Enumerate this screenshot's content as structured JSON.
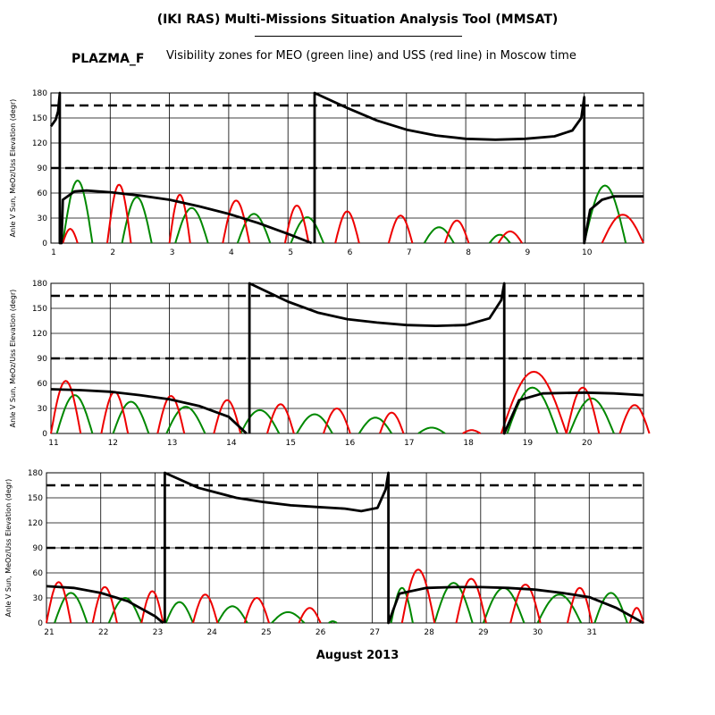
{
  "header": {
    "title": "(IKI RAS) Multi-Missions Situation Analysis Tool (MMSAT)",
    "satellite": "PLAZMA_F",
    "subtitle": "Visibility zones for MEO (green line) and USS (red line) in Moscow time"
  },
  "footer": {
    "month": "August 2013"
  },
  "chart_data": [
    {
      "type": "line",
      "ylabel": "Anle V Sun, MeOz/Uss Elevation (degr)",
      "xlim": [
        1,
        11
      ],
      "ylim": [
        0,
        180
      ],
      "x_ticks": [
        "1",
        "2",
        "3",
        "4",
        "5",
        "6",
        "7",
        "8",
        "9",
        "10"
      ],
      "y_ticks": [
        0,
        30,
        60,
        90,
        120,
        150,
        180
      ],
      "dashed_levels": [
        90,
        165
      ],
      "colors": {
        "black": "#000000",
        "green": "#008800",
        "red": "#ee0000"
      },
      "series": [
        {
          "color": "black",
          "points": [
            [
              1,
              140
            ],
            [
              1.08,
              148
            ],
            [
              1.12,
              158
            ],
            [
              1.15,
              180
            ],
            [
              1.15,
              0
            ],
            [
              1.18,
              0
            ],
            [
              1.2,
              52
            ],
            [
              1.4,
              62
            ],
            [
              1.6,
              63
            ],
            [
              2,
              61
            ],
            [
              2.5,
              57
            ],
            [
              3,
              52
            ],
            [
              3.5,
              44
            ],
            [
              4,
              35
            ],
            [
              4.5,
              24
            ],
            [
              5,
              11
            ],
            [
              5.4,
              0
            ]
          ]
        },
        {
          "color": "black",
          "points": [
            [
              5.45,
              0
            ],
            [
              5.45,
              180
            ],
            [
              6,
              162
            ],
            [
              6.5,
              147
            ],
            [
              7,
              136
            ],
            [
              7.5,
              129
            ],
            [
              8,
              125
            ],
            [
              8.5,
              124
            ],
            [
              9,
              125
            ],
            [
              9.5,
              128
            ],
            [
              9.8,
              135
            ],
            [
              9.95,
              150
            ],
            [
              10,
              175
            ],
            [
              10,
              0
            ],
            [
              10.1,
              40
            ],
            [
              10.3,
              52
            ],
            [
              10.5,
              56
            ],
            [
              11,
              56
            ]
          ]
        }
      ],
      "red_arcs": [
        [
          1.2,
          1.45,
          17
        ],
        [
          1.95,
          2.35,
          70
        ],
        [
          3.0,
          3.35,
          58
        ],
        [
          3.9,
          4.35,
          51
        ],
        [
          4.95,
          5.35,
          45
        ],
        [
          5.8,
          6.2,
          38
        ],
        [
          6.7,
          7.1,
          33
        ],
        [
          7.65,
          8.05,
          27
        ],
        [
          8.55,
          8.95,
          14
        ],
        [
          10.3,
          11,
          34
        ]
      ],
      "green_arcs": [
        [
          1.2,
          1.7,
          75
        ],
        [
          2.2,
          2.7,
          55
        ],
        [
          3.1,
          3.65,
          42
        ],
        [
          4.15,
          4.7,
          35
        ],
        [
          5.05,
          5.6,
          31
        ],
        [
          7.3,
          7.8,
          19
        ],
        [
          8.4,
          8.75,
          10
        ],
        [
          10,
          10.7,
          69
        ]
      ]
    },
    {
      "type": "line",
      "ylabel": "Anle V Sun, MeOz/Uss Elevation (degr)",
      "xlim": [
        11,
        21
      ],
      "ylim": [
        0,
        180
      ],
      "x_ticks": [
        "11",
        "12",
        "13",
        "14",
        "15",
        "16",
        "17",
        "18",
        "19",
        "20"
      ],
      "y_ticks": [
        0,
        30,
        60,
        90,
        120,
        150,
        180
      ],
      "dashed_levels": [
        90,
        165
      ],
      "colors": {
        "black": "#000000",
        "green": "#008800",
        "red": "#ee0000"
      },
      "series": [
        {
          "color": "black",
          "points": [
            [
              11,
              53
            ],
            [
              11.5,
              52
            ],
            [
              12,
              50
            ],
            [
              12.5,
              46
            ],
            [
              13,
              41
            ],
            [
              13.5,
              33
            ],
            [
              14,
              20
            ],
            [
              14.3,
              0
            ]
          ]
        },
        {
          "color": "black",
          "points": [
            [
              14.35,
              0
            ],
            [
              14.35,
              180
            ],
            [
              15,
              158
            ],
            [
              15.5,
              145
            ],
            [
              16,
              137
            ],
            [
              16.5,
              133
            ],
            [
              17,
              130
            ],
            [
              17.5,
              129
            ],
            [
              18,
              130
            ],
            [
              18.4,
              138
            ],
            [
              18.6,
              160
            ],
            [
              18.65,
              180
            ],
            [
              18.65,
              0
            ],
            [
              18.9,
              40
            ],
            [
              19.3,
              48
            ],
            [
              20,
              49
            ],
            [
              20.5,
              48
            ],
            [
              21,
              46
            ]
          ]
        }
      ],
      "red_arcs": [
        [
          11,
          11.5,
          63
        ],
        [
          11.85,
          12.3,
          50
        ],
        [
          12.8,
          13.25,
          45
        ],
        [
          13.75,
          14.2,
          40
        ],
        [
          14.65,
          15.1,
          35
        ],
        [
          15.6,
          16.05,
          30
        ],
        [
          16.55,
          16.95,
          25
        ],
        [
          17.95,
          18.25,
          4
        ],
        [
          18.6,
          19.7,
          74
        ],
        [
          19.7,
          20.25,
          55
        ],
        [
          20.6,
          21.1,
          34
        ]
      ],
      "green_arcs": [
        [
          11.1,
          11.7,
          46
        ],
        [
          12.05,
          12.65,
          38
        ],
        [
          12.95,
          13.6,
          32
        ],
        [
          14.2,
          14.85,
          28
        ],
        [
          15.15,
          15.75,
          23
        ],
        [
          16.2,
          16.75,
          19
        ],
        [
          17.2,
          17.65,
          7
        ],
        [
          18.7,
          19.55,
          55
        ],
        [
          19.75,
          20.5,
          42
        ]
      ]
    },
    {
      "type": "line",
      "ylabel": "Anle V Sun, MeOz/Uss Elevation (degr)",
      "xlim": [
        21,
        32
      ],
      "ylim": [
        0,
        180
      ],
      "x_ticks": [
        "21",
        "22",
        "23",
        "24",
        "25",
        "26",
        "27",
        "28",
        "29",
        "30",
        "31"
      ],
      "y_ticks": [
        0,
        30,
        60,
        90,
        120,
        150,
        180
      ],
      "dashed_levels": [
        90,
        165
      ],
      "colors": {
        "black": "#000000",
        "green": "#008800",
        "red": "#ee0000"
      },
      "series": [
        {
          "color": "black",
          "points": [
            [
              21,
              44
            ],
            [
              21.5,
              42
            ],
            [
              22,
              36
            ],
            [
              22.5,
              26
            ],
            [
              23,
              8
            ],
            [
              23.15,
              0
            ]
          ]
        },
        {
          "color": "black",
          "points": [
            [
              23.18,
              0
            ],
            [
              23.18,
              180
            ],
            [
              23.8,
              162
            ],
            [
              24.5,
              150
            ],
            [
              25,
              145
            ],
            [
              25.5,
              141
            ],
            [
              26,
              139
            ],
            [
              26.5,
              137
            ],
            [
              26.8,
              134
            ],
            [
              27.1,
              138
            ],
            [
              27.25,
              160
            ],
            [
              27.3,
              180
            ],
            [
              27.3,
              0
            ],
            [
              27.5,
              35
            ],
            [
              28,
              42
            ],
            [
              28.5,
              43
            ],
            [
              29,
              43
            ],
            [
              29.5,
              42
            ],
            [
              30,
              40
            ],
            [
              30.5,
              36
            ],
            [
              31,
              31
            ],
            [
              31.5,
              18
            ],
            [
              32,
              0
            ]
          ]
        }
      ],
      "red_arcs": [
        [
          21,
          21.45,
          49
        ],
        [
          21.85,
          22.3,
          43
        ],
        [
          22.75,
          23.15,
          38
        ],
        [
          23.7,
          24.15,
          34
        ],
        [
          24.65,
          25.1,
          30
        ],
        [
          25.65,
          26.05,
          18
        ],
        [
          27.55,
          28.15,
          64
        ],
        [
          28.55,
          29.1,
          53
        ],
        [
          29.55,
          30.1,
          46
        ],
        [
          30.6,
          31.05,
          42
        ],
        [
          31.75,
          32,
          18
        ]
      ],
      "green_arcs": [
        [
          21.15,
          21.75,
          36
        ],
        [
          22.15,
          22.75,
          30
        ],
        [
          23.2,
          23.7,
          25
        ],
        [
          24.15,
          24.7,
          20
        ],
        [
          25.15,
          25.75,
          13
        ],
        [
          26.2,
          26.35,
          2
        ],
        [
          27.35,
          27.75,
          42
        ],
        [
          28.15,
          28.85,
          48
        ],
        [
          29.05,
          29.8,
          42
        ],
        [
          30.05,
          30.85,
          34
        ],
        [
          31.1,
          31.7,
          36
        ]
      ]
    }
  ]
}
